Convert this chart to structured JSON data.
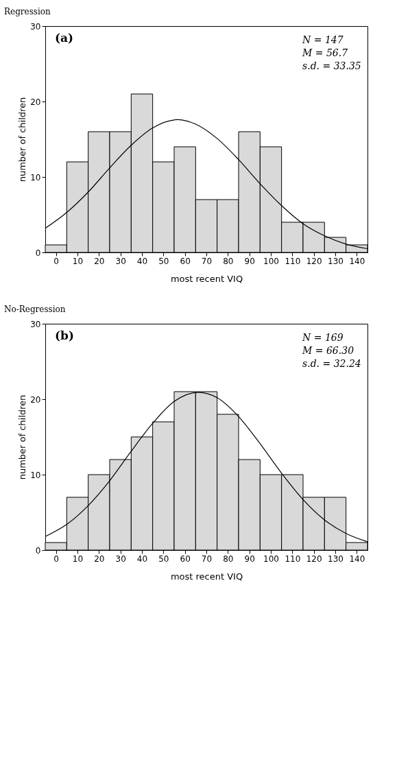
{
  "chart_data": [
    {
      "type": "histogram",
      "title": "Regression",
      "xlabel": "most recent VIQ",
      "ylabel": "number of children",
      "bins": [
        -5,
        5,
        15,
        25,
        35,
        45,
        55,
        65,
        75,
        85,
        95,
        105,
        115,
        125,
        135,
        145
      ],
      "values": [
        1,
        12,
        16,
        16,
        21,
        12,
        14,
        7,
        7,
        16,
        14,
        4,
        4,
        2,
        1
      ],
      "color": "#d9d9d9",
      "xlim": [
        -5,
        145
      ],
      "xticks": [
        0,
        10,
        20,
        30,
        40,
        50,
        60,
        70,
        80,
        90,
        100,
        110,
        120,
        130,
        140
      ],
      "ylim": [
        0,
        30
      ],
      "yticks": [
        0,
        10,
        20,
        30
      ],
      "annotations": [
        "(a)",
        "N = 147",
        "M = 56.7",
        "s.d. = 33.35"
      ],
      "series": [
        {
          "type": "line",
          "color": "#000000",
          "x": [
            -5,
            5,
            15,
            25,
            35,
            45,
            56.7,
            65,
            75,
            85,
            95,
            105,
            115,
            125,
            135,
            145
          ],
          "values": [
            3.2,
            5.3,
            8.0,
            11.2,
            14.2,
            16.5,
            17.6,
            17.0,
            15.1,
            12.3,
            9.1,
            6.2,
            3.8,
            2.2,
            1.1,
            0.5
          ]
        }
      ]
    },
    {
      "type": "histogram",
      "title": "No-Regression",
      "xlabel": "most recent VIQ",
      "ylabel": "number of children",
      "bins": [
        -5,
        5,
        15,
        25,
        35,
        45,
        55,
        65,
        75,
        85,
        95,
        105,
        115,
        125,
        135,
        145
      ],
      "values": [
        1,
        7,
        10,
        12,
        15,
        17,
        21,
        21,
        18,
        12,
        10,
        10,
        7,
        7,
        1
      ],
      "color": "#d9d9d9",
      "xlim": [
        -5,
        145
      ],
      "xticks": [
        0,
        10,
        20,
        30,
        40,
        50,
        60,
        70,
        80,
        90,
        100,
        110,
        120,
        130,
        140
      ],
      "ylim": [
        0,
        30
      ],
      "yticks": [
        0,
        10,
        20,
        30
      ],
      "annotations": [
        "(b)",
        "N = 169",
        "M = 66.30",
        "s.d. = 32.24"
      ],
      "series": [
        {
          "type": "line",
          "color": "#000000",
          "x": [
            -5,
            5,
            15,
            25,
            35,
            45,
            55,
            66.3,
            75,
            85,
            95,
            105,
            115,
            125,
            135,
            145
          ],
          "values": [
            1.8,
            3.4,
            5.9,
            9.2,
            13.1,
            16.8,
            19.7,
            20.9,
            20.2,
            17.7,
            14.1,
            10.2,
            6.7,
            4.0,
            2.2,
            1.1
          ]
        }
      ]
    }
  ]
}
